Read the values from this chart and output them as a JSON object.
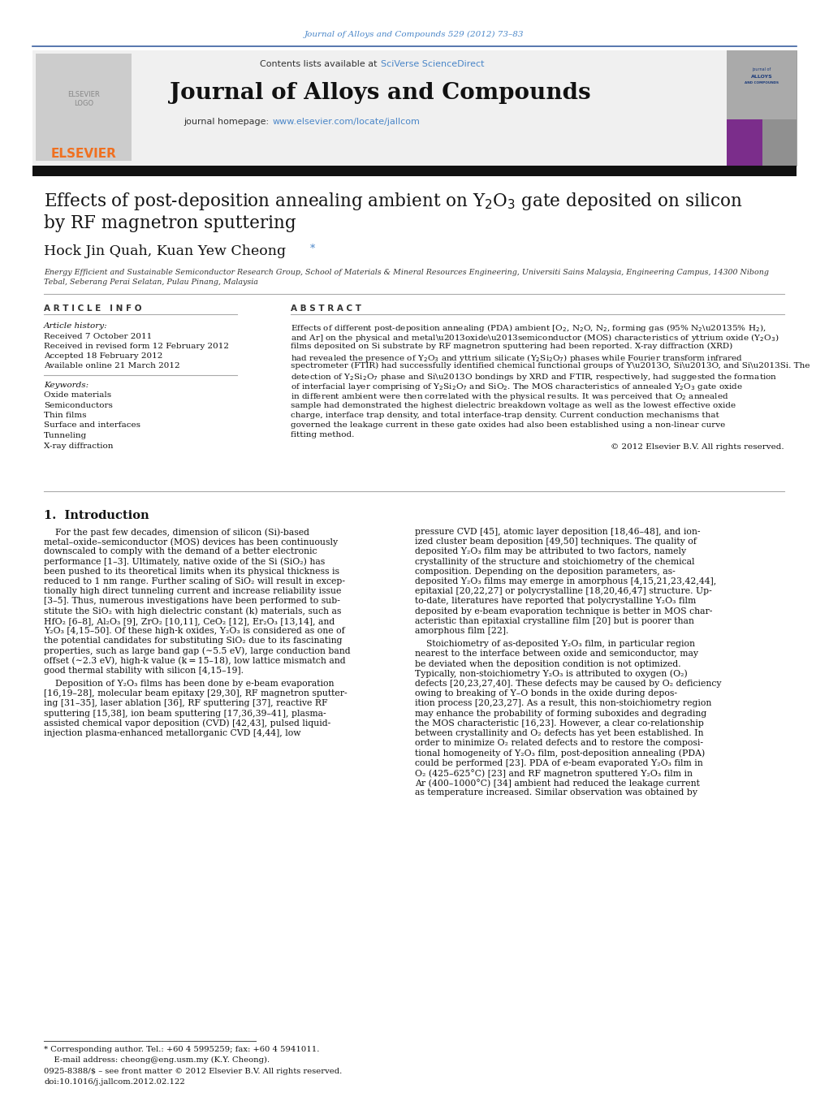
{
  "page_width": 10.21,
  "page_height": 13.51,
  "background_color": "#ffffff",
  "top_citation": "Journal of Alloys and Compounds 529 (2012) 73–83",
  "top_citation_color": "#4a86c8",
  "journal_title": "Journal of Alloys and Compounds",
  "journal_homepage_prefix": "journal homepage: ",
  "journal_homepage_url": "www.elsevier.com/locate/jallcom",
  "journal_homepage_url_color": "#4a86c8",
  "contents_text": "Contents lists available at ",
  "sciverse_text": "SciVerse ScienceDirect",
  "sciverse_color": "#4a86c8",
  "header_bg_color": "#f0f0f0",
  "elsevier_color": "#f07020",
  "article_info_header": "A R T I C L E   I N F O",
  "abstract_header": "A B S T R A C T",
  "article_history_label": "Article history:",
  "received1": "Received 7 October 2011",
  "received2": "Received in revised form 12 February 2012",
  "accepted": "Accepted 18 February 2012",
  "available": "Available online 21 March 2012",
  "keywords_label": "Keywords:",
  "keywords": [
    "Oxide materials",
    "Semiconductors",
    "Thin films",
    "Surface and interfaces",
    "Tunneling",
    "X-ray diffraction"
  ],
  "copyright": "© 2012 Elsevier B.V. All rights reserved.",
  "section1_title": "1.  Introduction",
  "footnote_asterisk": "* Corresponding author. Tel.: +60 4 5995259; fax: +60 4 5941011.",
  "footnote_email": "    E-mail address: cheong@eng.usm.my (K.Y. Cheong).",
  "footnote_issn": "0925-8388/$ – see front matter © 2012 Elsevier B.V. All rights reserved.",
  "footnote_doi": "doi:10.1016/j.jallcom.2012.02.122"
}
